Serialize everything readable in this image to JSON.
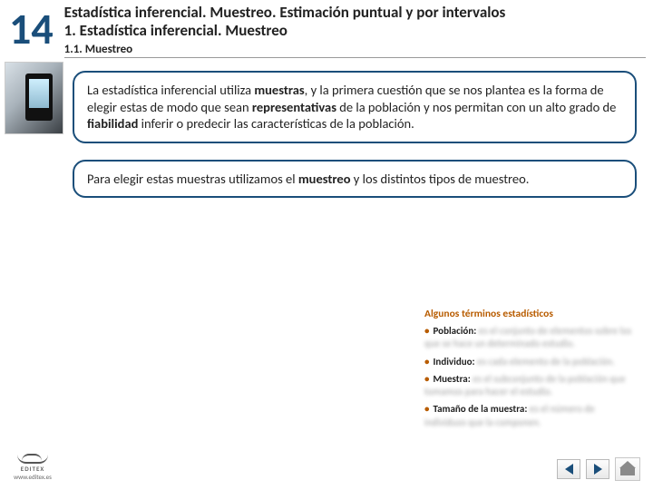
{
  "header": {
    "chapter_number": "14",
    "title": "Estadística inferencial. Muestreo. Estimación puntual y por intervalos",
    "section": "1. Estadística inferencial. Muestreo",
    "subsection": "1.1. Muestreo"
  },
  "cards": [
    {
      "html": "La estadística inferencial utiliza <b>muestras</b>, y la primera cuestión que se nos plantea es la forma de elegir estas de modo que sean <b>representativas</b> de la población y nos permitan con un alto grado de <b>fiabilidad</b> inferir o predecir las características de la población."
    },
    {
      "html": "Para elegir estas muestras utilizamos el <b>muestreo</b> y los distintos tipos de muestreo."
    }
  ],
  "terms": {
    "heading": "Algunos términos estadísticos",
    "items": [
      {
        "term": "Población:",
        "def": "es el conjunto de elementos sobre los que se hace un determinado estudio."
      },
      {
        "term": "Individuo:",
        "def": "es cada elemento de la población."
      },
      {
        "term": "Muestra:",
        "def": "es el subconjunto de la población que tomamos para hacer el estudio."
      },
      {
        "term": "Tamaño de la muestra:",
        "def": "es el número de individuos que la componen."
      }
    ]
  },
  "footer": {
    "brand": "EDITEX",
    "url": "www.editex.es"
  },
  "colors": {
    "accent": "#1a4e7a",
    "terms_accent": "#b85c00"
  }
}
